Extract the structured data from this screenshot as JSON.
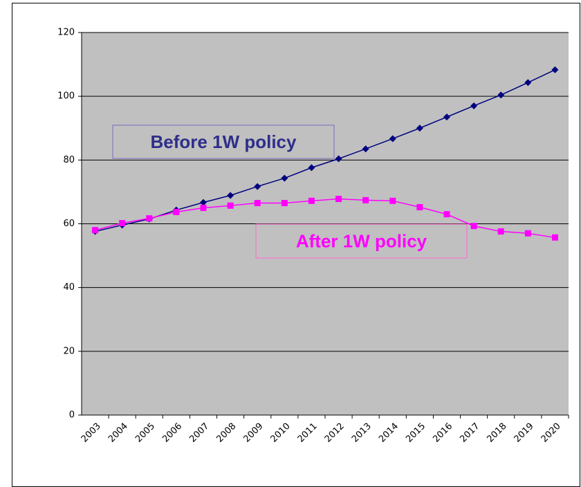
{
  "chart_data": {
    "type": "line",
    "categories": [
      "2003",
      "2004",
      "2005",
      "2006",
      "2007",
      "2008",
      "2009",
      "2010",
      "2011",
      "2012",
      "2013",
      "2014",
      "2015",
      "2016",
      "2017",
      "2018",
      "2019",
      "2020"
    ],
    "series": [
      {
        "name": "Before 1W policy",
        "color": "#000080",
        "marker": "diamond",
        "values": [
          57.6,
          59.6,
          61.5,
          64.3,
          66.7,
          68.9,
          71.7,
          74.3,
          77.6,
          80.4,
          83.5,
          86.7,
          90.0,
          93.5,
          97.0,
          100.4,
          104.3,
          108.3
        ]
      },
      {
        "name": "After 1W policy",
        "color": "#ff00ff",
        "marker": "square",
        "values": [
          58.0,
          60.2,
          61.7,
          63.7,
          65.0,
          65.7,
          66.5,
          66.5,
          67.2,
          67.8,
          67.4,
          67.2,
          65.2,
          63.0,
          59.3,
          57.6,
          57.0,
          55.7
        ]
      }
    ],
    "ylim": [
      0,
      120
    ],
    "yticks": [
      0,
      20,
      40,
      60,
      80,
      100,
      120
    ],
    "grid": true,
    "plot_background": "#c0c0c0"
  }
}
